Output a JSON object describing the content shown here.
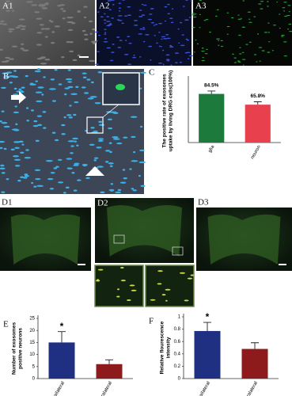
{
  "panels": {
    "a1": "A1",
    "a2": "A2",
    "a3": "A3",
    "b": "B",
    "d1": "D1",
    "d2": "D2",
    "d3": "D3"
  },
  "chart_data": [
    {
      "type": "bar",
      "label": "C",
      "ylabel": [
        "The positive rate of exosomes",
        "uptake by living DRG cells(100%)"
      ],
      "categories": [
        "glia",
        "neuron"
      ],
      "values": [
        84.5,
        65.8
      ],
      "value_labels": [
        "84.5%",
        "65.8%"
      ],
      "errors": [
        5,
        5
      ],
      "colors": [
        "#1c7a3c",
        "#e8404c"
      ],
      "ylim": [
        0,
        110
      ]
    },
    {
      "type": "bar",
      "label": "E",
      "ylabel": [
        "Number of exosomes",
        "positive neurons"
      ],
      "categories": [
        "ipsilateral",
        "contralateral"
      ],
      "values": [
        15,
        6
      ],
      "errors": [
        4.5,
        1.8
      ],
      "value_annotations": [
        "*",
        null
      ],
      "colors": [
        "#1f2f82",
        "#8e1b1b"
      ],
      "ylim": [
        0,
        25
      ],
      "yticks": [
        0,
        5,
        10,
        15,
        20,
        25
      ]
    },
    {
      "type": "bar",
      "label": "F",
      "ylabel": [
        "Relative flourescence",
        "intensity"
      ],
      "categories": [
        "ipsilateral",
        "contralateral"
      ],
      "values": [
        0.77,
        0.48
      ],
      "errors": [
        0.14,
        0.1
      ],
      "value_annotations": [
        "*",
        null
      ],
      "colors": [
        "#1f2f82",
        "#8e1b1b"
      ],
      "ylim": [
        0,
        1
      ],
      "yticks": [
        0,
        0.2,
        0.4,
        0.6,
        0.8,
        1
      ]
    }
  ]
}
